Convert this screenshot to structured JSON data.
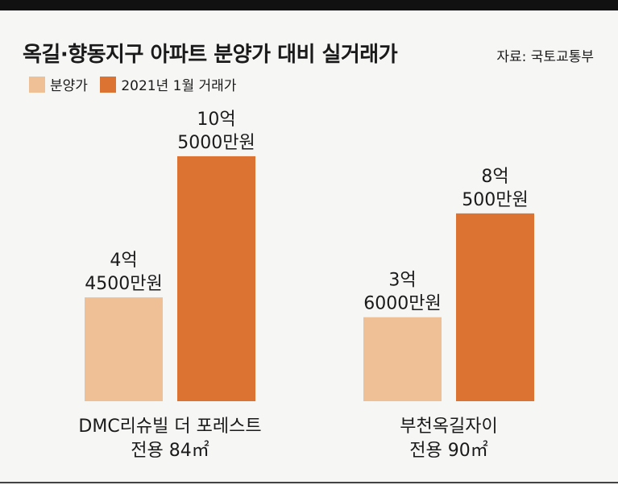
{
  "title": "옥길·향동지구 아파트 분양가 대비 실거래가",
  "source": "자료: 국토교통부",
  "colors": {
    "presale": "#efbf95",
    "transaction": "#dc7332"
  },
  "chart_data": {
    "type": "bar",
    "title": "옥길·향동지구 아파트 분양가 대비 실거래가",
    "unit": "만원",
    "categories": [
      "DMC리슈빌 더 포레스트",
      "부천옥길자이"
    ],
    "category_sublabels": [
      "전용 84㎡",
      "전용 90㎡"
    ],
    "series": [
      {
        "name": "분양가",
        "values": [
          44500,
          36000
        ],
        "value_labels": [
          [
            "4억",
            "4500만원"
          ],
          [
            "3억",
            "6000만원"
          ]
        ]
      },
      {
        "name": "2021년 1월 거래가",
        "values": [
          105000,
          80500
        ],
        "value_labels": [
          [
            "10억",
            "5000만원"
          ],
          [
            "8억",
            "500만원"
          ]
        ]
      }
    ],
    "legend": "top-left",
    "grid": false
  }
}
